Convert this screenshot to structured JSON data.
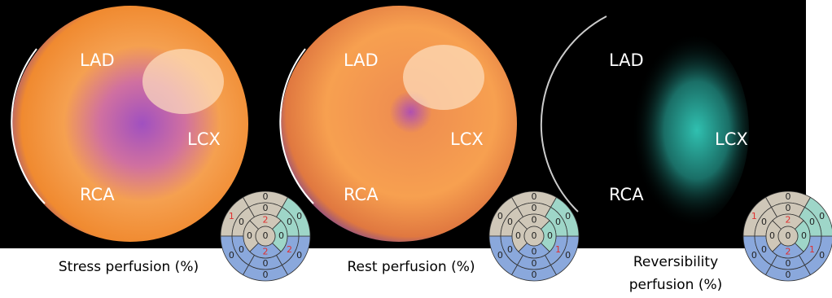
{
  "panels": [
    {
      "region_labels": {
        "lad": "LAD",
        "lcx": "LCX",
        "rca": "RCA"
      },
      "caption": [
        "Stress perfusion (%)"
      ],
      "scores": {
        "basal": [
          0,
          1,
          0,
          0,
          0,
          0
        ],
        "mid": [
          0,
          0,
          0,
          0,
          2,
          0
        ],
        "apical": [
          2,
          0,
          2,
          0
        ],
        "apex": 0
      }
    },
    {
      "region_labels": {
        "lad": "LAD",
        "lcx": "LCX",
        "rca": "RCA"
      },
      "caption": [
        "Rest perfusion (%)"
      ],
      "scores": {
        "basal": [
          0,
          0,
          0,
          0,
          0,
          0
        ],
        "mid": [
          0,
          0,
          0,
          0,
          1,
          0
        ],
        "apical": [
          0,
          0,
          0,
          0
        ],
        "apex": 0
      }
    },
    {
      "region_labels": {
        "lad": "LAD",
        "lcx": "LCX",
        "rca": "RCA"
      },
      "caption": [
        "Reversibility",
        "perfusion (%)"
      ],
      "scores": {
        "basal": [
          0,
          1,
          0,
          0,
          0,
          0
        ],
        "mid": [
          0,
          0,
          0,
          0,
          1,
          0
        ],
        "apical": [
          2,
          0,
          2,
          0
        ],
        "apex": 0
      }
    }
  ]
}
